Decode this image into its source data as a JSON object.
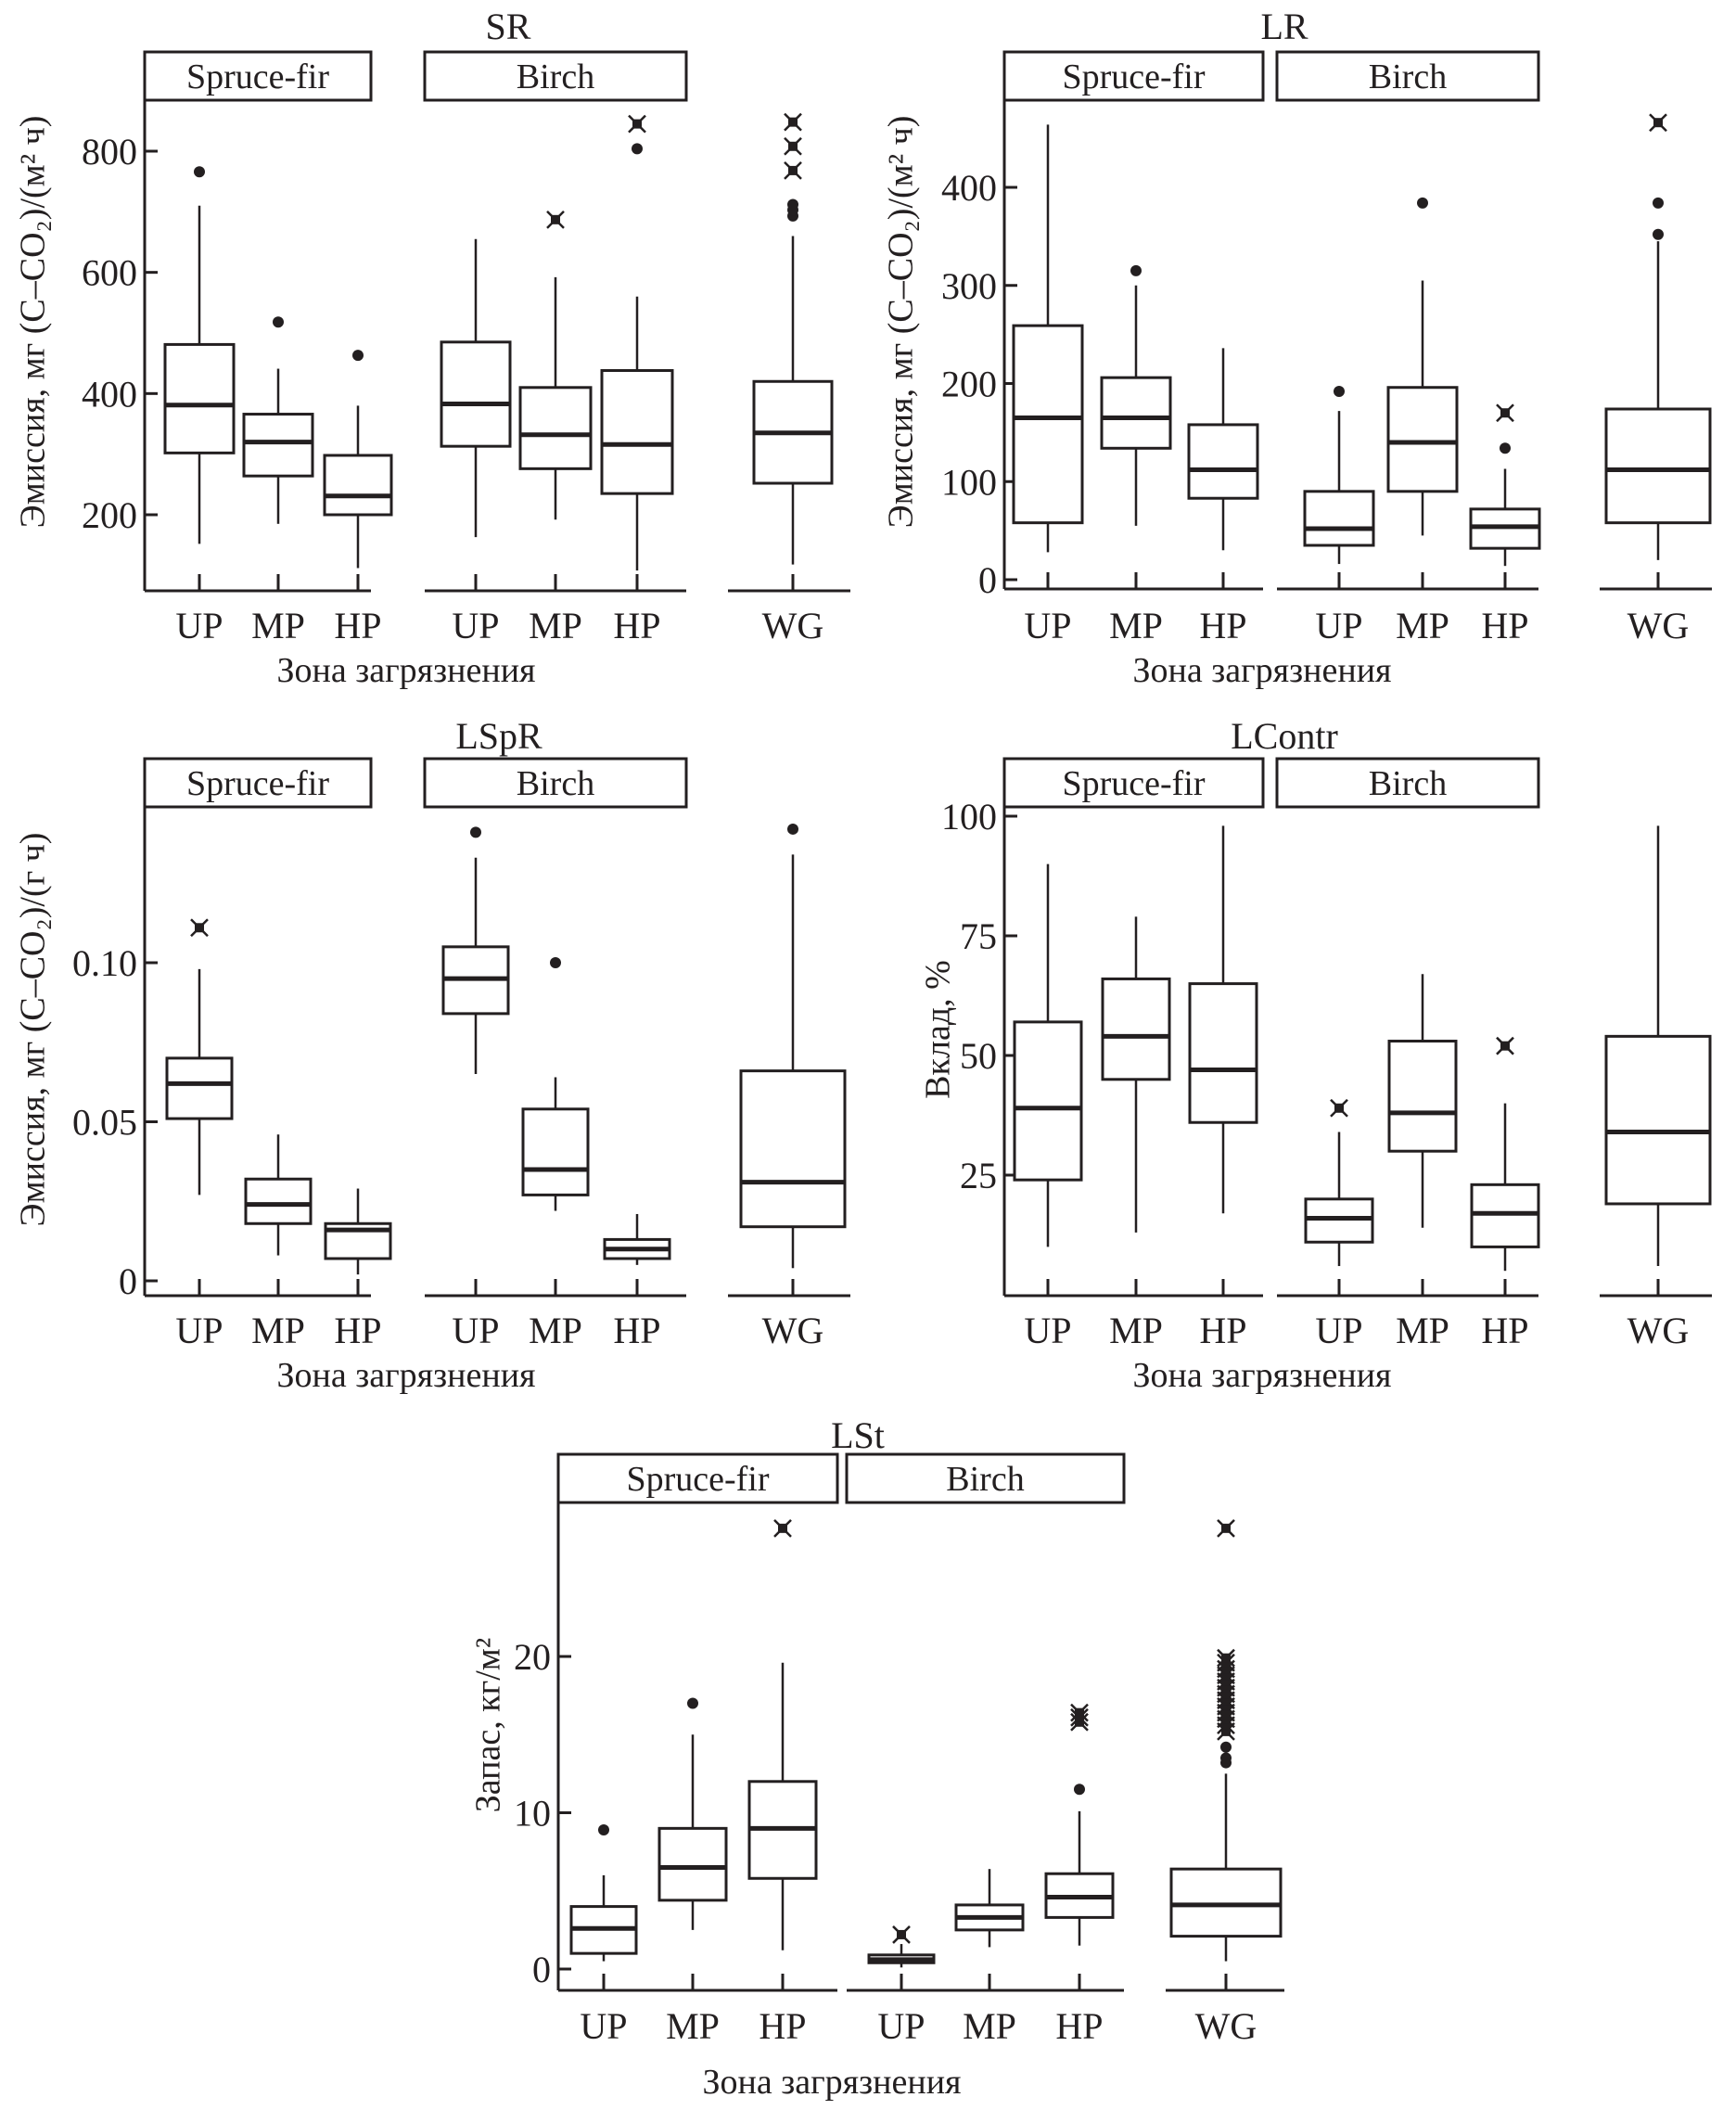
{
  "figure": {
    "xlabel": "Зона загрязнения",
    "strips": [
      "Spruce-fir",
      "Birch"
    ],
    "categories": [
      "UP",
      "MP",
      "HP"
    ],
    "whole_group_label": "WG",
    "colors": {
      "ink": "#231f20",
      "background": "#ffffff"
    }
  },
  "chart_data": [
    {
      "type": "boxplot",
      "id": "SR",
      "title": "SR",
      "ylabel": "Эмиссия, мг (C–CO₂)/(м² ч)",
      "ylim": [
        90,
        890
      ],
      "yticks": [
        200,
        400,
        600,
        800
      ],
      "ytick_labels": [
        "200",
        "400",
        "600",
        "800"
      ],
      "xlabel": "Зона загрязнения",
      "groups": [
        {
          "strip": "Spruce-fir",
          "boxes": [
            {
              "cat": "UP",
              "min": 152,
              "q1": 302,
              "median": 381,
              "q3": 481,
              "max": 710,
              "outliers": [
                766
              ],
              "extremes": []
            },
            {
              "cat": "MP",
              "min": 185,
              "q1": 264,
              "median": 320,
              "q3": 366,
              "max": 441,
              "outliers": [
                518
              ],
              "extremes": []
            },
            {
              "cat": "HP",
              "min": 112,
              "q1": 200,
              "median": 231,
              "q3": 298,
              "max": 380,
              "outliers": [
                463
              ],
              "extremes": []
            }
          ]
        },
        {
          "strip": "Birch",
          "boxes": [
            {
              "cat": "UP",
              "min": 163,
              "q1": 313,
              "median": 383,
              "q3": 485,
              "max": 655,
              "outliers": [],
              "extremes": []
            },
            {
              "cat": "MP",
              "min": 192,
              "q1": 276,
              "median": 332,
              "q3": 410,
              "max": 592,
              "outliers": [],
              "extremes": [
                687
              ]
            },
            {
              "cat": "HP",
              "min": 108,
              "q1": 235,
              "median": 316,
              "q3": 438,
              "max": 560,
              "outliers": [
                804
              ],
              "extremes": [
                845
              ]
            }
          ]
        },
        {
          "strip": "",
          "boxes": [
            {
              "cat": "WG",
              "min": 118,
              "q1": 252,
              "median": 335,
              "q3": 420,
              "max": 660,
              "outliers": [
                693,
                703,
                712
              ],
              "extremes": [
                768,
                808,
                848
              ]
            }
          ]
        }
      ]
    },
    {
      "type": "boxplot",
      "id": "LR",
      "title": "LR",
      "ylabel": "Эмиссия, мг (C–CO₂)/(м² ч)",
      "ylim": [
        -8,
        490
      ],
      "yticks": [
        0,
        100,
        200,
        300,
        400
      ],
      "ytick_labels": [
        "0",
        "100",
        "200",
        "300",
        "400"
      ],
      "xlabel": "Зона загрязнения",
      "groups": [
        {
          "strip": "Spruce-fir",
          "boxes": [
            {
              "cat": "UP",
              "min": 28,
              "q1": 58,
              "median": 165,
              "q3": 259,
              "max": 464,
              "outliers": [],
              "extremes": []
            },
            {
              "cat": "MP",
              "min": 55,
              "q1": 134,
              "median": 165,
              "q3": 206,
              "max": 300,
              "outliers": [
                315
              ],
              "extremes": []
            },
            {
              "cat": "HP",
              "min": 30,
              "q1": 83,
              "median": 112,
              "q3": 158,
              "max": 236,
              "outliers": [],
              "extremes": []
            }
          ]
        },
        {
          "strip": "Birch",
          "boxes": [
            {
              "cat": "UP",
              "min": 16,
              "q1": 35,
              "median": 52,
              "q3": 90,
              "max": 172,
              "outliers": [
                192
              ],
              "extremes": []
            },
            {
              "cat": "MP",
              "min": 45,
              "q1": 90,
              "median": 140,
              "q3": 196,
              "max": 305,
              "outliers": [
                384
              ],
              "extremes": []
            },
            {
              "cat": "HP",
              "min": 14,
              "q1": 32,
              "median": 54,
              "q3": 72,
              "max": 113,
              "outliers": [
                134
              ],
              "extremes": [
                170
              ]
            }
          ]
        },
        {
          "strip": "",
          "boxes": [
            {
              "cat": "WG",
              "min": 20,
              "q1": 58,
              "median": 112,
              "q3": 174,
              "max": 345,
              "outliers": [
                352,
                384
              ],
              "extremes": [
                466
              ]
            }
          ]
        }
      ]
    },
    {
      "type": "boxplot",
      "id": "LSpR",
      "title": "LSpR",
      "ylabel": "Эмиссия, мг (C–CO₂)/(г ч)",
      "ylim": [
        -0.005,
        0.15
      ],
      "yticks": [
        0,
        0.05,
        0.1
      ],
      "ytick_labels": [
        "0",
        "0.05",
        "0.10"
      ],
      "xlabel": "Зона загрязнения",
      "groups": [
        {
          "strip": "Spruce-fir",
          "boxes": [
            {
              "cat": "UP",
              "min": 0.027,
              "q1": 0.051,
              "median": 0.062,
              "q3": 0.07,
              "max": 0.098,
              "outliers": [],
              "extremes": [
                0.111
              ]
            },
            {
              "cat": "MP",
              "min": 0.008,
              "q1": 0.018,
              "median": 0.024,
              "q3": 0.032,
              "max": 0.046,
              "outliers": [],
              "extremes": []
            },
            {
              "cat": "HP",
              "min": 0.002,
              "q1": 0.007,
              "median": 0.016,
              "q3": 0.018,
              "max": 0.029,
              "outliers": [],
              "extremes": []
            }
          ]
        },
        {
          "strip": "Birch",
          "boxes": [
            {
              "cat": "UP",
              "min": 0.065,
              "q1": 0.084,
              "median": 0.095,
              "q3": 0.105,
              "max": 0.133,
              "outliers": [
                0.141
              ],
              "extremes": []
            },
            {
              "cat": "MP",
              "min": 0.022,
              "q1": 0.027,
              "median": 0.035,
              "q3": 0.054,
              "max": 0.064,
              "outliers": [
                0.1
              ],
              "extremes": []
            },
            {
              "cat": "HP",
              "min": 0.005,
              "q1": 0.007,
              "median": 0.01,
              "q3": 0.013,
              "max": 0.021,
              "outliers": [],
              "extremes": []
            }
          ]
        },
        {
          "strip": "",
          "boxes": [
            {
              "cat": "WG",
              "min": 0.004,
              "q1": 0.017,
              "median": 0.031,
              "q3": 0.066,
              "max": 0.134,
              "outliers": [
                0.142
              ],
              "extremes": []
            }
          ]
        }
      ]
    },
    {
      "type": "boxplot",
      "id": "LContr",
      "title": "LContr",
      "ylabel": "Вклад, %",
      "ylim": [
        0,
        104
      ],
      "yticks": [
        25,
        50,
        75,
        100
      ],
      "ytick_labels": [
        "25",
        "50",
        "75",
        "100"
      ],
      "xlabel": "Зона загрязнения",
      "groups": [
        {
          "strip": "Spruce-fir",
          "boxes": [
            {
              "cat": "UP",
              "min": 10,
              "q1": 24,
              "median": 39,
              "q3": 57,
              "max": 90,
              "outliers": [],
              "extremes": []
            },
            {
              "cat": "MP",
              "min": 13,
              "q1": 45,
              "median": 54,
              "q3": 66,
              "max": 79,
              "outliers": [],
              "extremes": []
            },
            {
              "cat": "HP",
              "min": 17,
              "q1": 36,
              "median": 47,
              "q3": 65,
              "max": 98,
              "outliers": [],
              "extremes": []
            }
          ]
        },
        {
          "strip": "Birch",
          "boxes": [
            {
              "cat": "UP",
              "min": 6,
              "q1": 11,
              "median": 16,
              "q3": 20,
              "max": 34,
              "outliers": [],
              "extremes": [
                39
              ]
            },
            {
              "cat": "MP",
              "min": 14,
              "q1": 30,
              "median": 38,
              "q3": 53,
              "max": 67,
              "outliers": [],
              "extremes": []
            },
            {
              "cat": "HP",
              "min": 5,
              "q1": 10,
              "median": 17,
              "q3": 23,
              "max": 40,
              "outliers": [],
              "extremes": [
                52
              ]
            }
          ]
        },
        {
          "strip": "",
          "boxes": [
            {
              "cat": "WG",
              "min": 6,
              "q1": 19,
              "median": 34,
              "q3": 54,
              "max": 98,
              "outliers": [],
              "extremes": []
            }
          ]
        }
      ]
    },
    {
      "type": "boxplot",
      "id": "LSt",
      "title": "LSt",
      "ylabel": "Запас, кг/м²",
      "ylim": [
        -1.3,
        30
      ],
      "yticks": [
        0,
        10,
        20
      ],
      "ytick_labels": [
        "0",
        "10",
        "20"
      ],
      "xlabel": "Зона загрязнения",
      "groups": [
        {
          "strip": "Spruce-fir",
          "boxes": [
            {
              "cat": "UP",
              "min": 0.5,
              "q1": 1.0,
              "median": 2.6,
              "q3": 4.0,
              "max": 6.0,
              "outliers": [
                8.9
              ],
              "extremes": []
            },
            {
              "cat": "MP",
              "min": 2.5,
              "q1": 4.4,
              "median": 6.5,
              "q3": 9.0,
              "max": 15.0,
              "outliers": [
                17.0
              ],
              "extremes": []
            },
            {
              "cat": "HP",
              "min": 1.2,
              "q1": 5.8,
              "median": 9.0,
              "q3": 12.0,
              "max": 19.6,
              "outliers": [],
              "extremes": [
                28.2
              ]
            }
          ]
        },
        {
          "strip": "Birch",
          "boxes": [
            {
              "cat": "UP",
              "min": 0.1,
              "q1": 0.4,
              "median": 0.6,
              "q3": 0.9,
              "max": 1.6,
              "outliers": [],
              "extremes": [
                2.2
              ]
            },
            {
              "cat": "MP",
              "min": 1.4,
              "q1": 2.5,
              "median": 3.3,
              "q3": 4.1,
              "max": 6.4,
              "outliers": [],
              "extremes": []
            },
            {
              "cat": "HP",
              "min": 1.5,
              "q1": 3.3,
              "median": 4.6,
              "q3": 6.1,
              "max": 10.1,
              "outliers": [
                11.5
              ],
              "extremes": [
                15.8,
                16.1,
                16.4
              ]
            }
          ]
        },
        {
          "strip": "",
          "boxes": [
            {
              "cat": "WG",
              "min": 0.5,
              "q1": 2.1,
              "median": 4.1,
              "q3": 6.4,
              "max": 12.5,
              "outliers": [
                13.2,
                13.5,
                14.2
              ],
              "extremes": [
                15.2,
                15.6,
                16.0,
                16.4,
                16.8,
                17.2,
                17.6,
                18.0,
                18.4,
                18.8,
                19.2,
                19.6,
                19.9,
                28.2
              ]
            }
          ]
        }
      ]
    }
  ]
}
